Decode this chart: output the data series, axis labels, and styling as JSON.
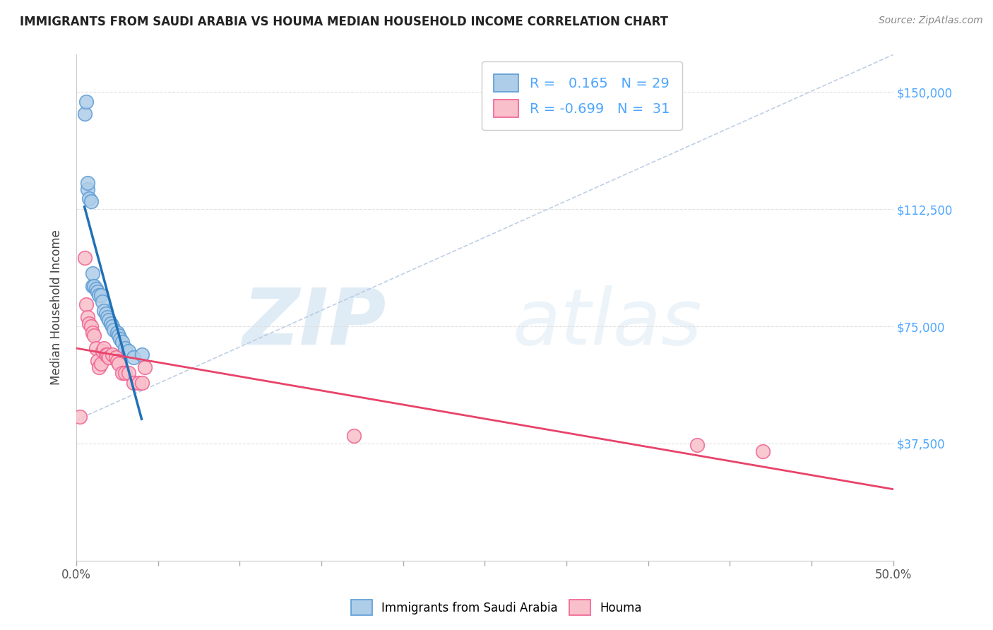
{
  "title": "IMMIGRANTS FROM SAUDI ARABIA VS HOUMA MEDIAN HOUSEHOLD INCOME CORRELATION CHART",
  "source": "Source: ZipAtlas.com",
  "ylabel": "Median Household Income",
  "yticks": [
    0,
    37500,
    75000,
    112500,
    150000
  ],
  "ytick_labels": [
    "",
    "$37,500",
    "$75,000",
    "$112,500",
    "$150,000"
  ],
  "xlim": [
    0.0,
    0.5
  ],
  "ylim": [
    0,
    162000
  ],
  "blue_R": 0.165,
  "blue_N": 29,
  "pink_R": -0.699,
  "pink_N": 31,
  "blue_color": "#aecde8",
  "pink_color": "#f9c0cb",
  "blue_edge_color": "#5b9bd5",
  "pink_edge_color": "#f06090",
  "blue_line_color": "#2171b5",
  "pink_line_color": "#e8436a",
  "blue_scatter_x": [
    0.005,
    0.006,
    0.007,
    0.007,
    0.008,
    0.009,
    0.01,
    0.01,
    0.011,
    0.012,
    0.013,
    0.014,
    0.015,
    0.016,
    0.017,
    0.018,
    0.019,
    0.02,
    0.021,
    0.022,
    0.023,
    0.025,
    0.026,
    0.027,
    0.028,
    0.03,
    0.032,
    0.035,
    0.04
  ],
  "blue_scatter_y": [
    143000,
    147000,
    119000,
    121000,
    116000,
    115000,
    88000,
    92000,
    88000,
    87000,
    86000,
    85000,
    85000,
    83000,
    80000,
    79000,
    78000,
    77000,
    76000,
    75000,
    74000,
    73000,
    72000,
    71000,
    70000,
    68000,
    67000,
    65000,
    66000
  ],
  "pink_scatter_x": [
    0.002,
    0.005,
    0.006,
    0.007,
    0.008,
    0.009,
    0.01,
    0.011,
    0.012,
    0.013,
    0.014,
    0.015,
    0.016,
    0.017,
    0.018,
    0.019,
    0.02,
    0.022,
    0.024,
    0.025,
    0.026,
    0.028,
    0.03,
    0.032,
    0.035,
    0.038,
    0.04,
    0.042,
    0.17,
    0.38,
    0.42
  ],
  "pink_scatter_y": [
    46000,
    97000,
    82000,
    78000,
    76000,
    75000,
    73000,
    72000,
    68000,
    64000,
    62000,
    63000,
    67000,
    68000,
    66000,
    66000,
    65000,
    66000,
    65000,
    64000,
    63000,
    60000,
    60000,
    60000,
    57000,
    57000,
    57000,
    62000,
    40000,
    37000,
    35000
  ],
  "watermark_zip": "ZIP",
  "watermark_atlas": "atlas",
  "legend_label_blue": "Immigrants from Saudi Arabia",
  "legend_label_pink": "Houma",
  "background_color": "#ffffff",
  "diag_line_color": "#b0c4de",
  "grid_color": "#e0e0e0"
}
